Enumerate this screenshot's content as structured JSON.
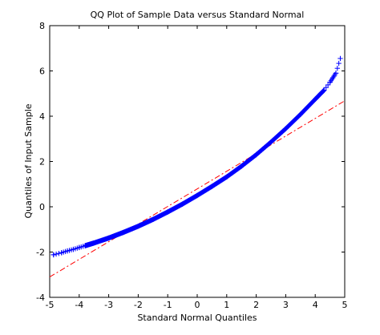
{
  "chart_data": {
    "type": "scatter",
    "title": "QQ Plot of Sample Data versus Standard Normal",
    "xlabel": "Standard Normal Quantiles",
    "ylabel": "Quantiles of Input Sample",
    "xlim": [
      -5,
      5
    ],
    "ylim": [
      -4,
      8
    ],
    "xticks": [
      "-5",
      "-4",
      "-3",
      "-2",
      "-1",
      "0",
      "1",
      "2",
      "3",
      "4",
      "5"
    ],
    "yticks": [
      "-4",
      "-2",
      "0",
      "2",
      "4",
      "6",
      "8"
    ],
    "grid": false,
    "legend": "none",
    "series": [
      {
        "marker": "+",
        "color": "#0000ff",
        "points": [
          [
            -4.87,
            -2.12
          ],
          [
            -4.6,
            -2.03
          ],
          [
            -4.4,
            -1.95
          ],
          [
            -4.2,
            -1.88
          ],
          [
            -4.0,
            -1.8
          ],
          [
            -3.8,
            -1.72
          ],
          [
            -3.5,
            -1.6
          ],
          [
            -3.0,
            -1.38
          ],
          [
            -2.5,
            -1.13
          ],
          [
            -2.0,
            -0.86
          ],
          [
            -1.5,
            -0.56
          ],
          [
            -1.0,
            -0.23
          ],
          [
            -0.5,
            0.12
          ],
          [
            0.0,
            0.5
          ],
          [
            0.5,
            0.9
          ],
          [
            1.0,
            1.32
          ],
          [
            1.5,
            1.79
          ],
          [
            2.0,
            2.3
          ],
          [
            2.5,
            2.86
          ],
          [
            3.0,
            3.45
          ],
          [
            3.5,
            4.08
          ],
          [
            4.0,
            4.75
          ],
          [
            4.3,
            5.15
          ],
          [
            4.5,
            5.5
          ],
          [
            4.6,
            5.7
          ],
          [
            4.7,
            5.9
          ],
          [
            4.85,
            6.55
          ]
        ]
      },
      {
        "line_style": "dash-dot",
        "color": "#ff0000",
        "points": [
          [
            -5.0,
            -3.1
          ],
          [
            5.0,
            4.68
          ]
        ]
      }
    ]
  }
}
